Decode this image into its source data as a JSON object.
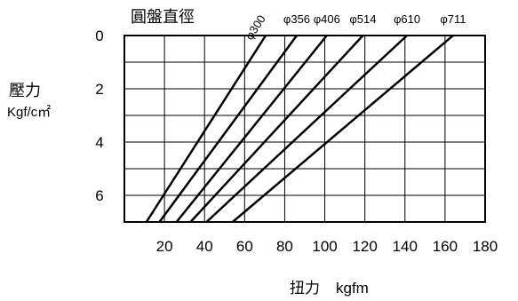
{
  "chart_data": {
    "type": "line",
    "title": "圓盤直徑",
    "ylabel_line1": "壓力",
    "ylabel_line2": "Kgf/c㎡",
    "xlabel_cjk": "扭力",
    "xlabel_unit": "kgfm",
    "xlim": [
      0,
      180
    ],
    "ylim": [
      0,
      7
    ],
    "y_inverted": true,
    "x_ticks": [
      20,
      40,
      60,
      80,
      100,
      120,
      140,
      160,
      180
    ],
    "y_ticks": [
      0,
      2,
      4,
      6
    ],
    "grid": true,
    "series": [
      {
        "name": "φ300",
        "label_rotated": true,
        "points": [
          [
            70.5,
            0
          ],
          [
            11,
            7
          ]
        ]
      },
      {
        "name": "φ356",
        "points": [
          [
            86,
            0
          ],
          [
            17.5,
            7
          ]
        ]
      },
      {
        "name": "φ406",
        "points": [
          [
            101,
            0
          ],
          [
            26,
            7
          ]
        ]
      },
      {
        "name": "φ514",
        "points": [
          [
            119,
            0
          ],
          [
            33,
            7
          ]
        ]
      },
      {
        "name": "φ610",
        "points": [
          [
            141,
            0
          ],
          [
            41,
            7
          ]
        ]
      },
      {
        "name": "φ711",
        "points": [
          [
            164,
            0
          ],
          [
            54,
            7
          ]
        ]
      }
    ]
  }
}
